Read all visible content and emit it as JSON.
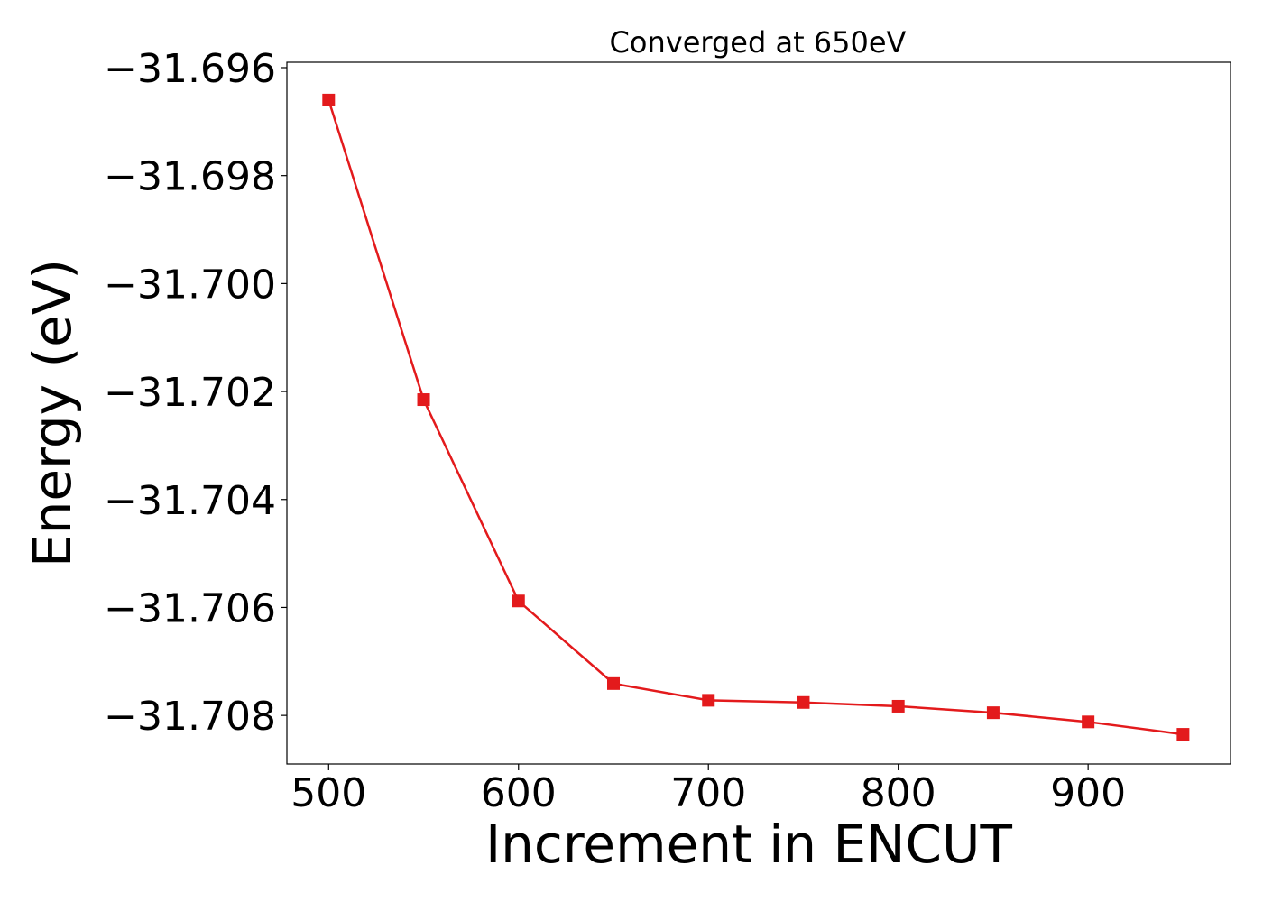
{
  "chart_data": {
    "type": "line",
    "title": "Converged at 650eV",
    "xlabel": "Increment in ENCUT",
    "ylabel": "Energy (eV)",
    "xlim": [
      478,
      975
    ],
    "ylim": [
      -31.7089,
      -31.6959
    ],
    "xticks": [
      500,
      600,
      700,
      800,
      900
    ],
    "xtick_labels": [
      "500",
      "600",
      "700",
      "800",
      "900"
    ],
    "yticks": [
      -31.696,
      -31.698,
      -31.7,
      -31.702,
      -31.704,
      -31.706,
      -31.708
    ],
    "ytick_labels": [
      "−31.696",
      "−31.698",
      "−31.700",
      "−31.702",
      "−31.704",
      "−31.706",
      "−31.708"
    ],
    "grid": false,
    "marker": "square",
    "color": "#e31a1c",
    "series": [
      {
        "x": [
          500,
          550,
          600,
          650,
          700,
          750,
          800,
          850,
          900,
          950
        ],
        "y": [
          -31.6966,
          -31.70215,
          -31.70588,
          -31.70741,
          -31.70772,
          -31.70776,
          -31.70783,
          -31.70795,
          -31.70812,
          -31.70835
        ]
      }
    ]
  }
}
